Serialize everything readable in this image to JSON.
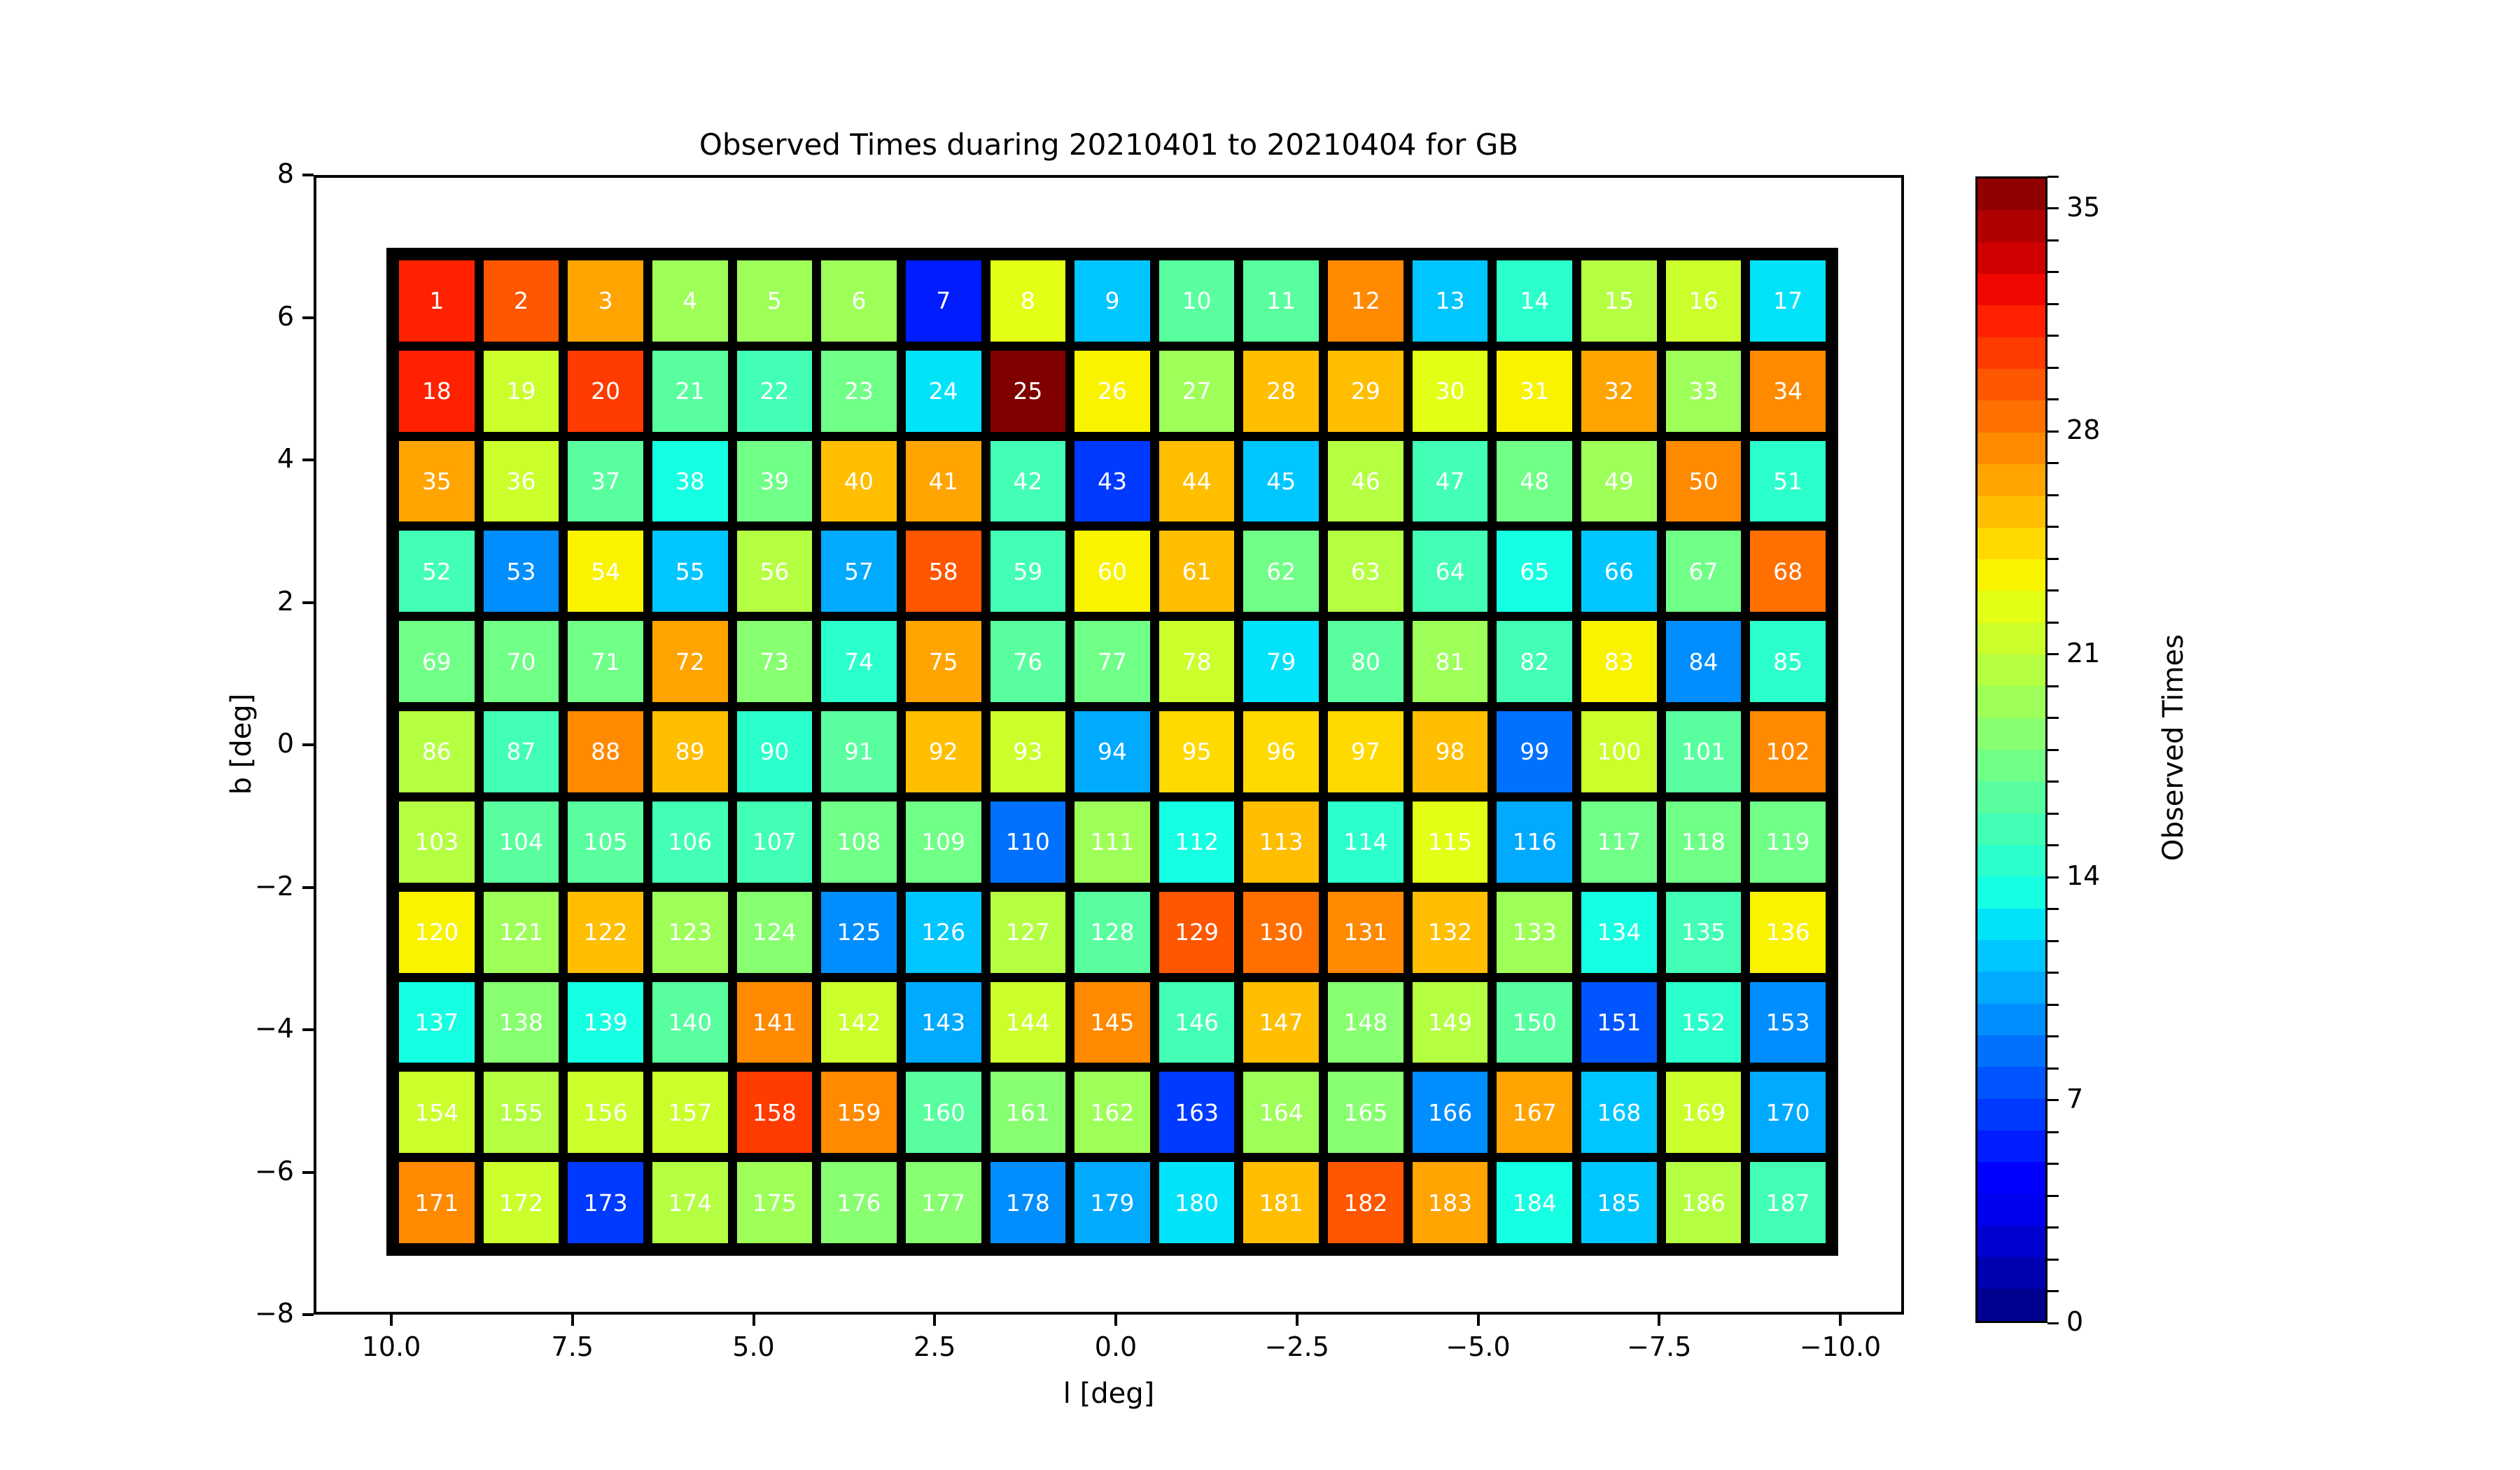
{
  "title": "Observed Times duaring 20210401 to 20210404 for GB",
  "axes": {
    "xlabel": "l [deg]",
    "ylabel": "b [deg]",
    "x_ticks": [
      "10.0",
      "7.5",
      "5.0",
      "2.5",
      "0.0",
      "−2.5",
      "−5.0",
      "−7.5",
      "−10.0"
    ],
    "y_ticks": [
      "8",
      "6",
      "4",
      "2",
      "0",
      "−2",
      "−4",
      "−6",
      "−8"
    ]
  },
  "colorbar": {
    "label": "Observed Times",
    "tick_labels": [
      "0",
      "7",
      "14",
      "21",
      "28",
      "35"
    ],
    "tick_values": [
      0,
      7,
      14,
      21,
      28,
      35
    ],
    "vmin": 0,
    "vmax": 36,
    "bands": 36,
    "colormap": "jet"
  },
  "chart_data": {
    "type": "heatmap",
    "rows": 11,
    "cols": 17,
    "title": "Observed Times duaring 20210401 to 20210404 for GB",
    "xlabel": "l [deg]",
    "ylabel": "b [deg]",
    "x_range": [
      10.0,
      -10.0
    ],
    "y_range": [
      -8,
      8
    ],
    "value_label": "Observed Times",
    "value_range": [
      0,
      36
    ],
    "cell_numbers_start": 1,
    "cell_numbers_end": 187,
    "values": [
      31,
      29,
      26,
      19,
      19,
      19,
      5,
      22,
      11,
      16,
      16,
      27,
      11,
      14,
      20,
      21,
      12,
      31,
      21,
      30,
      16,
      15,
      17,
      12,
      36,
      23,
      19,
      25,
      25,
      22,
      23,
      26,
      19,
      27,
      26,
      21,
      16,
      13,
      17,
      25,
      26,
      15,
      6,
      25,
      11,
      20,
      15,
      17,
      19,
      27,
      14,
      15,
      9,
      23,
      11,
      20,
      10,
      29,
      15,
      23,
      25,
      17,
      20,
      15,
      13,
      11,
      17,
      28,
      17,
      17,
      17,
      26,
      18,
      14,
      26,
      16,
      17,
      21,
      12,
      16,
      19,
      15,
      23,
      9,
      14,
      20,
      15,
      27,
      25,
      14,
      16,
      25,
      21,
      10,
      24,
      24,
      24,
      25,
      8,
      21,
      16,
      27,
      20,
      16,
      16,
      15,
      15,
      17,
      17,
      8,
      19,
      13,
      25,
      14,
      22,
      10,
      17,
      17,
      17,
      23,
      19,
      25,
      19,
      18,
      9,
      11,
      20,
      16,
      29,
      28,
      27,
      25,
      19,
      13,
      15,
      23,
      13,
      18,
      13,
      16,
      27,
      21,
      10,
      21,
      27,
      15,
      25,
      18,
      20,
      16,
      7,
      14,
      9,
      21,
      20,
      21,
      21,
      30,
      27,
      16,
      18,
      19,
      6,
      19,
      18,
      9,
      26,
      11,
      21,
      10,
      27,
      21,
      6,
      20,
      19,
      18,
      18,
      9,
      10,
      12,
      25,
      29,
      26,
      13,
      11,
      20,
      15
    ]
  }
}
